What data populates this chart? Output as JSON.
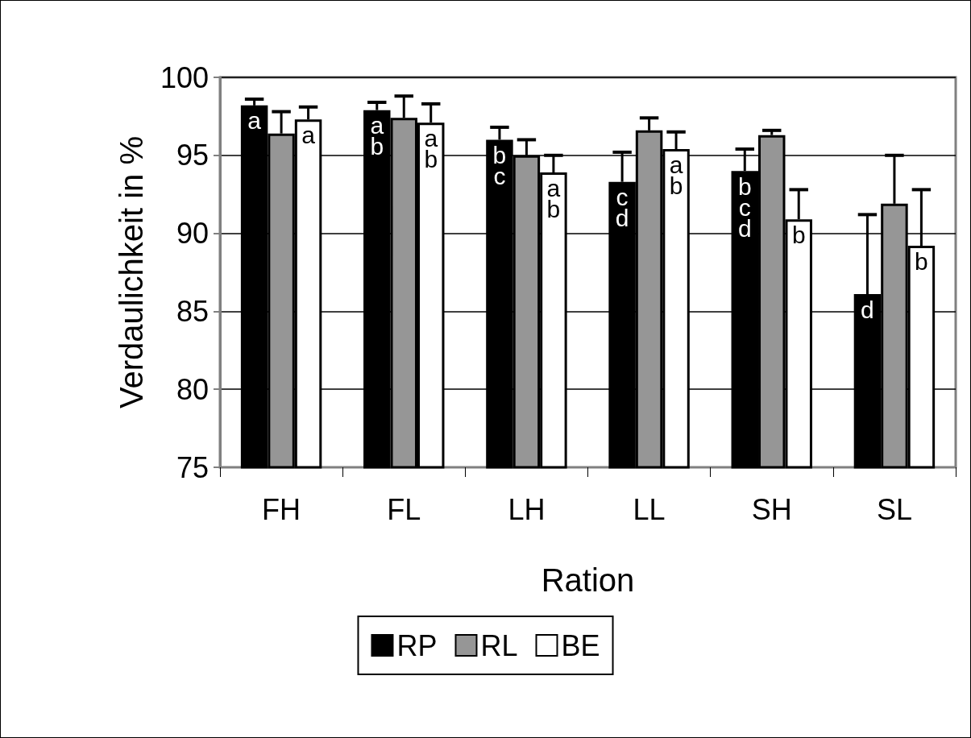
{
  "chart_data": {
    "type": "bar",
    "xlabel": "Ration",
    "ylabel": "Verdaulichkeit in %",
    "categories": [
      "FH",
      "FL",
      "LH",
      "LL",
      "SH",
      "SL"
    ],
    "ylim": [
      75,
      100
    ],
    "yticks": [
      75,
      80,
      85,
      90,
      95,
      100
    ],
    "grid": "y",
    "legend": "bottom",
    "series": [
      {
        "name": "RP",
        "color": "#000000",
        "values": [
          98.2,
          97.9,
          96.0,
          93.3,
          94.0,
          86.1
        ],
        "errors": [
          [
            98.2,
            98.6
          ],
          [
            97.9,
            98.4
          ],
          [
            96.0,
            96.8
          ],
          [
            93.3,
            95.2
          ],
          [
            94.0,
            95.4
          ],
          [
            86.1,
            91.2
          ]
        ],
        "value_labels": [
          "a",
          "a\nb",
          "b\nc",
          "c\nd",
          "b\nc\nd",
          "d"
        ]
      },
      {
        "name": "RL",
        "color": "#969696",
        "values": [
          96.4,
          97.4,
          95.0,
          96.6,
          96.3,
          91.9
        ],
        "errors": [
          [
            96.4,
            97.8
          ],
          [
            97.4,
            98.8
          ],
          [
            95.0,
            96.0
          ],
          [
            96.6,
            97.4
          ],
          [
            96.3,
            96.6
          ],
          [
            91.9,
            95.0
          ]
        ]
      },
      {
        "name": "BE",
        "color": "#ffffff",
        "values": [
          97.3,
          97.1,
          93.9,
          95.4,
          90.9,
          89.2
        ],
        "errors": [
          [
            97.3,
            98.1
          ],
          [
            97.1,
            98.3
          ],
          [
            93.9,
            95.0
          ],
          [
            95.4,
            96.5
          ],
          [
            90.9,
            92.8
          ],
          [
            89.2,
            92.8
          ]
        ],
        "value_labels": [
          "a",
          "a\nb",
          "a\nb",
          "a\nb",
          "b",
          "b"
        ]
      }
    ]
  }
}
